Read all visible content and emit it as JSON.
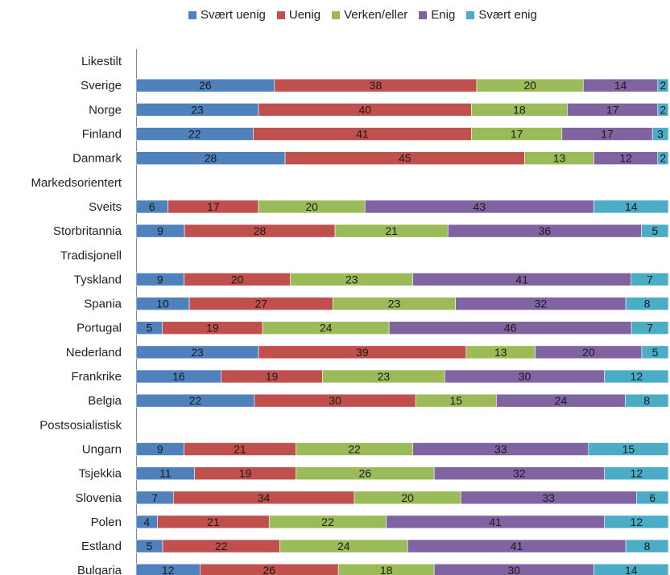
{
  "chart_data": {
    "type": "bar",
    "orientation": "horizontal",
    "stacked": true,
    "percent_stacked": true,
    "legend": {
      "position": "top"
    },
    "grid": false,
    "xlim": [
      0,
      100
    ],
    "series": [
      {
        "name": "Svært uenig",
        "color": "#4F81BD"
      },
      {
        "name": "Uenig",
        "color": "#C0504D"
      },
      {
        "name": "Verken/eller",
        "color": "#9BBB59"
      },
      {
        "name": "Enig",
        "color": "#8064A2"
      },
      {
        "name": "Svært enig",
        "color": "#4BACC6"
      }
    ],
    "rows": [
      {
        "label": "Likestilt",
        "group": true
      },
      {
        "label": "Sverige",
        "values": [
          26,
          38,
          20,
          14,
          2
        ]
      },
      {
        "label": "Norge",
        "values": [
          23,
          40,
          18,
          17,
          2
        ]
      },
      {
        "label": "Finland",
        "values": [
          22,
          41,
          17,
          17,
          3
        ]
      },
      {
        "label": "Danmark",
        "values": [
          28,
          45,
          13,
          12,
          2
        ]
      },
      {
        "label": "Markedsorientert",
        "group": true
      },
      {
        "label": "Sveits",
        "values": [
          6,
          17,
          20,
          43,
          14
        ]
      },
      {
        "label": "Storbritannia",
        "values": [
          9,
          28,
          21,
          36,
          5
        ]
      },
      {
        "label": "Tradisjonell",
        "group": true
      },
      {
        "label": "Tyskland",
        "values": [
          9,
          20,
          23,
          41,
          7
        ]
      },
      {
        "label": "Spania",
        "values": [
          10,
          27,
          23,
          32,
          8
        ]
      },
      {
        "label": "Portugal",
        "values": [
          5,
          19,
          24,
          46,
          7
        ]
      },
      {
        "label": "Nederland",
        "values": [
          23,
          39,
          13,
          20,
          5
        ]
      },
      {
        "label": "Frankrike",
        "values": [
          16,
          19,
          23,
          30,
          12
        ]
      },
      {
        "label": "Belgia",
        "values": [
          22,
          30,
          15,
          24,
          8
        ]
      },
      {
        "label": "Postsosialistisk",
        "group": true
      },
      {
        "label": "Ungarn",
        "values": [
          9,
          21,
          22,
          33,
          15
        ]
      },
      {
        "label": "Tsjekkia",
        "values": [
          11,
          19,
          26,
          32,
          12
        ]
      },
      {
        "label": "Slovenia",
        "values": [
          7,
          34,
          20,
          33,
          6
        ]
      },
      {
        "label": "Polen",
        "values": [
          4,
          21,
          22,
          41,
          12
        ]
      },
      {
        "label": "Estland",
        "values": [
          5,
          22,
          24,
          41,
          8
        ]
      },
      {
        "label": "Bulgaria",
        "values": [
          12,
          26,
          18,
          30,
          14
        ]
      }
    ]
  }
}
